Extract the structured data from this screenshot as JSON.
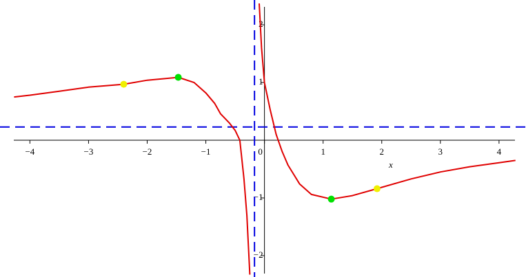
{
  "chart_data": {
    "type": "line",
    "x_label": "x",
    "xlim": [
      -4.51,
      4.46
    ],
    "ylim": [
      -2.37,
      2.43
    ],
    "xticks": [
      {
        "value": -4,
        "label": "−4"
      },
      {
        "value": -3,
        "label": "−3"
      },
      {
        "value": -2,
        "label": "−2"
      },
      {
        "value": -1,
        "label": "−1"
      },
      0,
      1,
      2,
      3,
      4
    ],
    "yticks": [
      {
        "value": -2,
        "label": "−2"
      },
      {
        "value": -1,
        "label": "−1"
      },
      1,
      2
    ],
    "series": [
      {
        "color": "#e00000",
        "x": [
          -4.27,
          -4,
          -3.5,
          -3,
          -2.4,
          -2,
          -1.47,
          -1.2,
          -1,
          -0.85,
          -0.75,
          -0.6,
          -0.5,
          -0.42,
          -0.35,
          -0.3,
          -0.25,
          null,
          -0.09,
          -0.05,
          0,
          0.1,
          0.2,
          0.3,
          0.4,
          0.6,
          0.8,
          1.14,
          1.5,
          1.92,
          2.5,
          3,
          3.5,
          4,
          4.28
        ],
        "values": [
          0.75,
          0.78,
          0.85,
          0.92,
          0.97,
          1.04,
          1.09,
          1.0,
          0.82,
          0.64,
          0.46,
          0.3,
          0.17,
          0.0,
          -0.67,
          -1.3,
          -2.33,
          null,
          2.37,
          1.6,
          1.0,
          0.52,
          0.1,
          -0.19,
          -0.43,
          -0.76,
          -0.94,
          -1.02,
          -0.96,
          -0.84,
          -0.67,
          -0.55,
          -0.46,
          -0.39,
          -0.35
        ]
      },
      {
        "color": "#00e000",
        "x": [
          -1.47,
          1.14
        ],
        "values": [
          1.09,
          -1.02
        ]
      },
      {
        "color": "#f0f000",
        "x": [
          -2.4,
          1.92
        ],
        "values": [
          0.97,
          -0.84
        ]
      }
    ],
    "asymptotes": {
      "color": "#0000e0",
      "vertical": -0.17,
      "horizontal": 0.23
    }
  }
}
